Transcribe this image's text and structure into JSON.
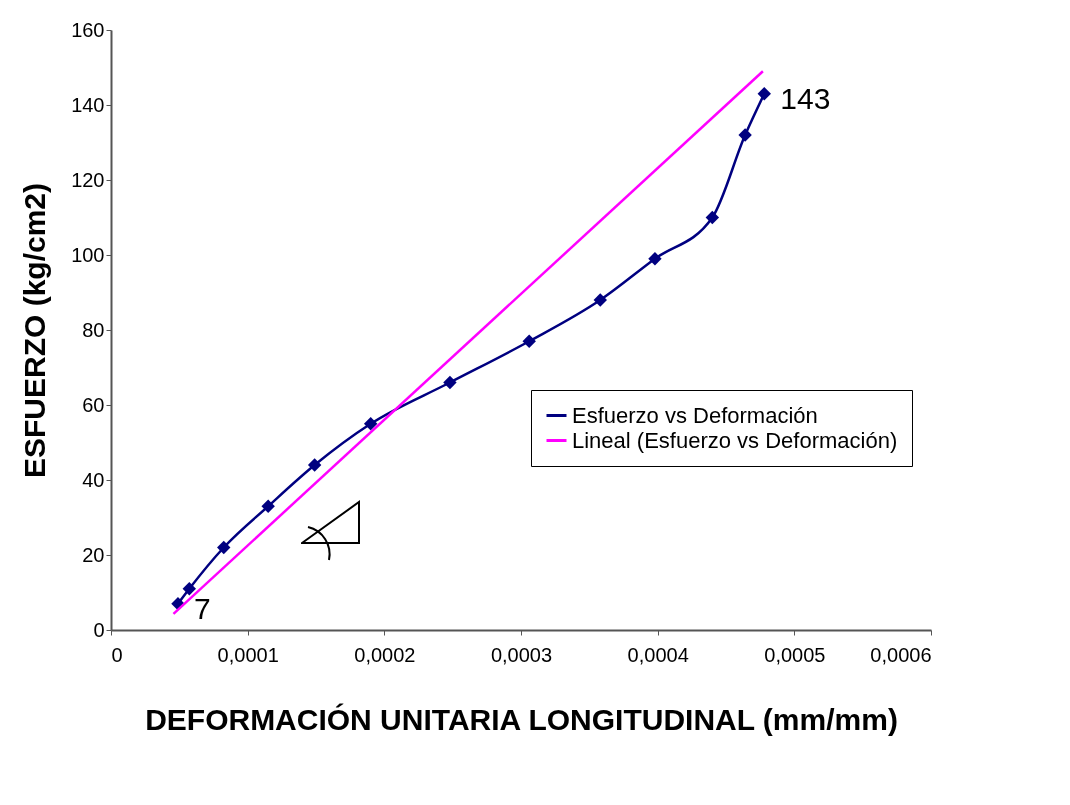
{
  "chart_data": {
    "type": "line",
    "xlabel": "DEFORMACIÓN UNITARIA LONGITUDINAL (mm/mm)",
    "ylabel": "ESFUERZO (kg/cm2)",
    "xlim": [
      0,
      0.0006
    ],
    "xticks": [
      0,
      {
        "value": 0.0001,
        "label": "0,0001"
      },
      {
        "value": 0.0002,
        "label": "0,0002"
      },
      {
        "value": 0.0003,
        "label": "0,0003"
      },
      {
        "value": 0.0004,
        "label": "0,0004"
      },
      {
        "value": 0.0005,
        "label": "0,0005"
      },
      {
        "value": 0.0006,
        "label": "0,0006"
      }
    ],
    "ylim": [
      0,
      160
    ],
    "yticks": [
      0,
      20,
      40,
      60,
      80,
      100,
      120,
      140,
      160
    ],
    "grid": false,
    "legend": "right",
    "marker": "diamond",
    "line_style": "solid",
    "series": [
      {
        "name": "Esfuerzo vs Deformación",
        "color": "#000080",
        "x": [
          4.9e-05,
          5.73e-05,
          8.25e-05,
          0.000115,
          0.000149,
          0.00019,
          0.000248,
          0.000306,
          0.000358,
          0.000398,
          0.00044,
          0.000464,
          0.000478
        ],
        "values": [
          7,
          11,
          22,
          33,
          44,
          55,
          66,
          77,
          88,
          99,
          110,
          132,
          143
        ],
        "value_labels": [
          "7",
          null,
          null,
          null,
          null,
          null,
          null,
          null,
          null,
          null,
          null,
          null,
          "143"
        ]
      },
      {
        "name": "Lineal (Esfuerzo vs Deformación)",
        "color": "#ff00ff",
        "marker": "none",
        "x": [
          4.57e-05,
          0.000477
        ],
        "values": [
          4.3,
          149
        ]
      }
    ]
  }
}
